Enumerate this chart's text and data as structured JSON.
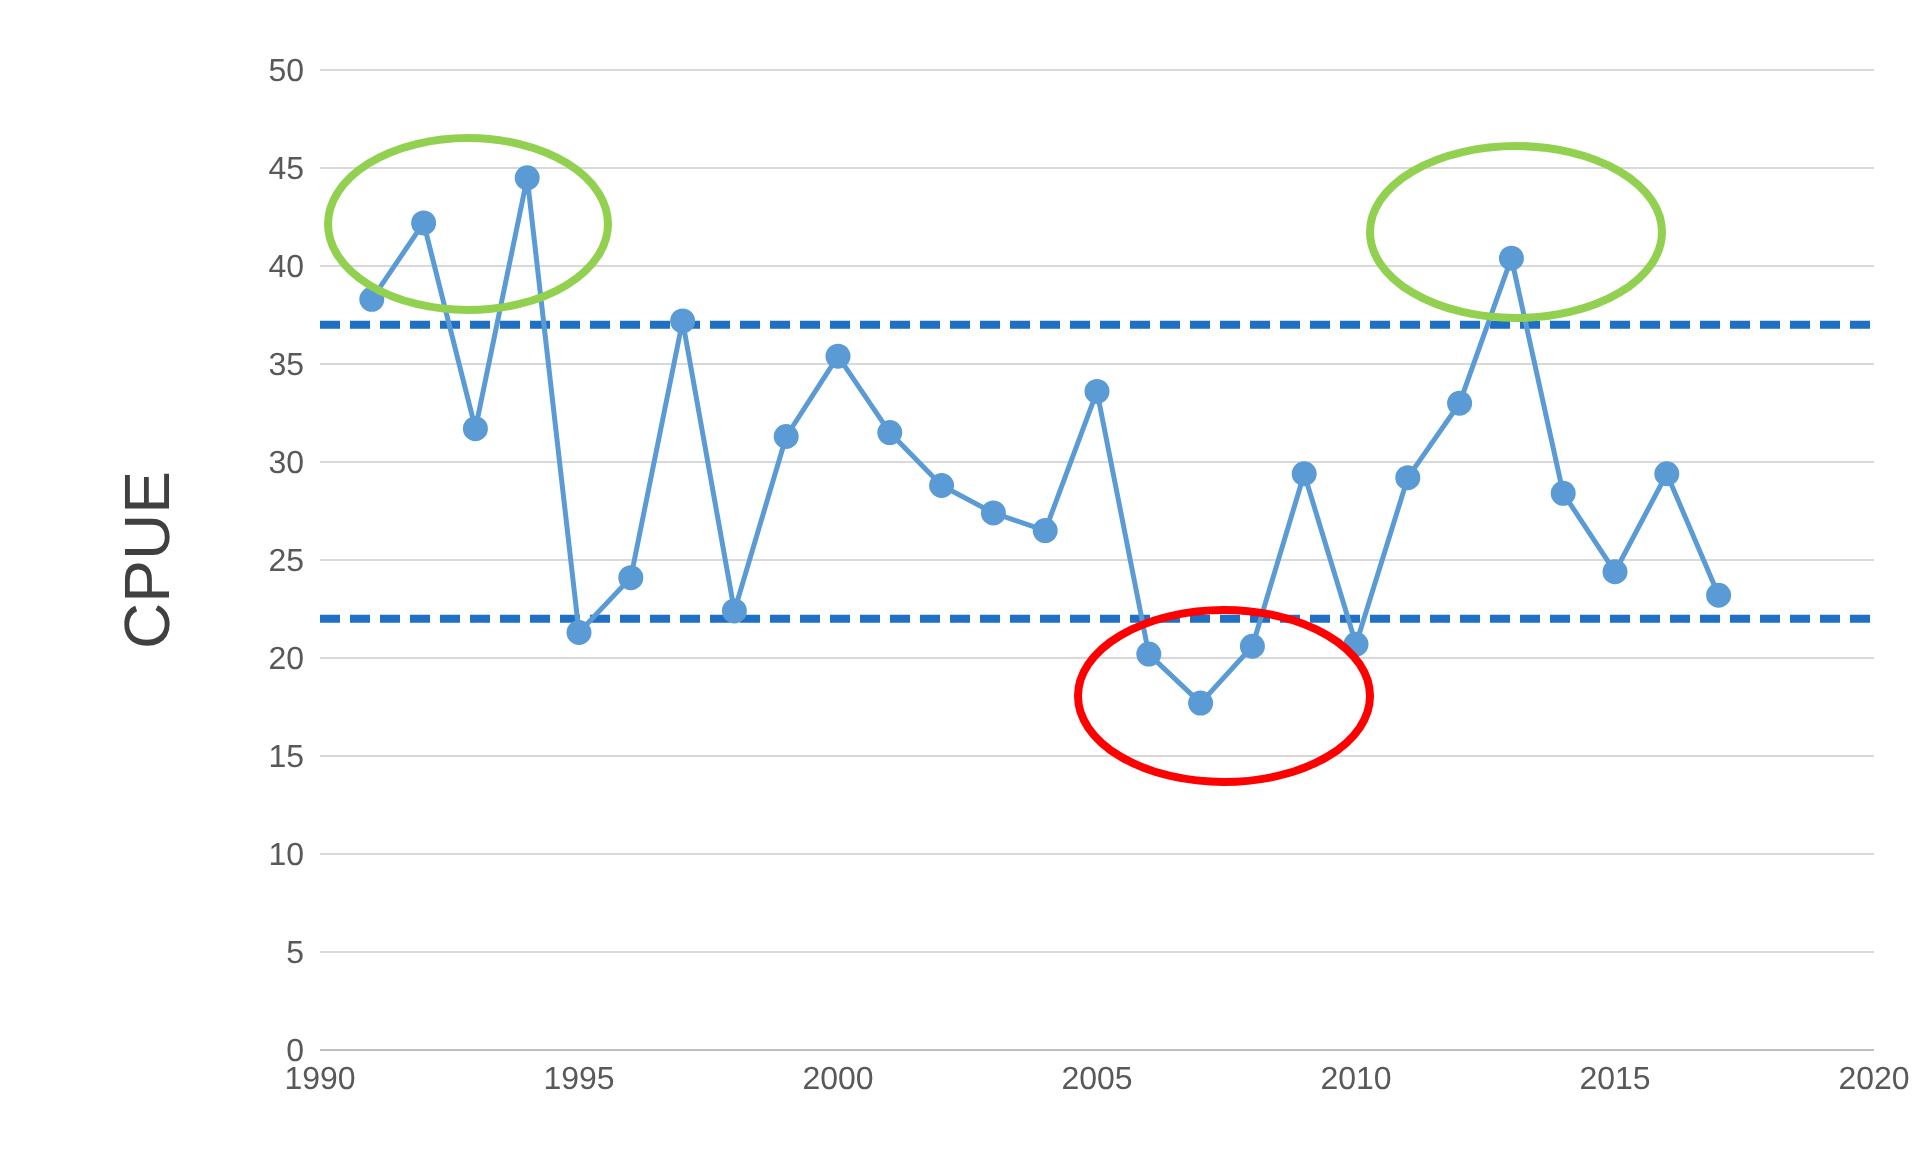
{
  "chart_data": {
    "type": "line",
    "ylabel": "CPUE",
    "x": [
      1991,
      1992,
      1993,
      1994,
      1995,
      1996,
      1997,
      1998,
      1999,
      2000,
      2001,
      2002,
      2003,
      2004,
      2005,
      2006,
      2007,
      2008,
      2009,
      2010,
      2011,
      2012,
      2013,
      2014,
      2015,
      2016,
      2017
    ],
    "series": [
      {
        "color": "#5b9bd5",
        "values": [
          38.3,
          42.2,
          31.7,
          44.5,
          21.3,
          24.1,
          37.2,
          22.4,
          31.3,
          35.4,
          31.5,
          28.8,
          27.4,
          26.5,
          33.6,
          20.2,
          17.7,
          20.6,
          29.4,
          20.7,
          29.2,
          33.0,
          40.4,
          28.4,
          24.4,
          29.4,
          23.2
        ]
      }
    ],
    "xlim": [
      1990,
      2020
    ],
    "xticks": [
      1990,
      1995,
      2000,
      2005,
      2010,
      2015,
      2020
    ],
    "ylim": [
      0,
      50
    ],
    "yticks": [
      0,
      5,
      10,
      15,
      20,
      25,
      30,
      35,
      40,
      45,
      50
    ],
    "ref_lines": [
      {
        "axis": "y",
        "value": 37,
        "color": "#1f6fc5",
        "line_style": "dashed"
      },
      {
        "axis": "y",
        "value": 22,
        "color": "#1f6fc5",
        "line_style": "dashed"
      }
    ],
    "grid": "y",
    "marker": "circle",
    "line_style": "solid",
    "legend": false
  }
}
